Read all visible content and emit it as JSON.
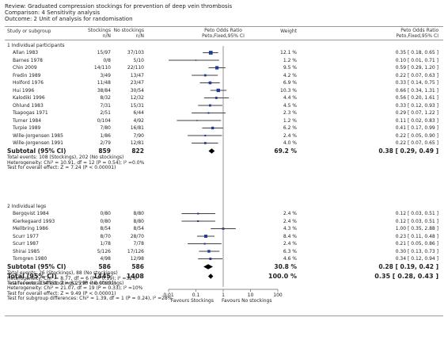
{
  "review": "Review:  Graduated compression stockings for prevention of deep vein thrombosis",
  "comparison": "Comparison:  4 Sensitivity analysis",
  "outcome": "Outcome:  2 Unit of analysis for randomisation",
  "columns": {
    "study": "Study or subgroup",
    "stockings1": "Stockings",
    "stockings2": "n/N",
    "nostock1": "No stockings",
    "nostock2": "n/N",
    "plot1": "Peto Odds Ratio",
    "plot2": "Peto,Fixed,95% CI",
    "weight": "Weight",
    "or1": "Peto Odds Ratio",
    "or2": "Peto,Fixed,95% CI"
  },
  "footer": {
    "left": "Favours Stockings",
    "right": "Favours No stockings",
    "ticks": [
      "0.01",
      "0.1",
      "1",
      "10",
      "100"
    ]
  },
  "chart_data": {
    "type": "forest",
    "scale": "log",
    "xlim": [
      0.01,
      100
    ],
    "groups": [
      {
        "title": "1 Individual participants",
        "studies": [
          {
            "name": "Allan 1983",
            "exp": "15/97",
            "ctrl": "37/103",
            "weight": "12.1 %",
            "ci": "0.35 [ 0.18, 0.65 ]",
            "or": 0.35,
            "lo": 0.18,
            "hi": 0.65,
            "w": 12.1
          },
          {
            "name": "Barnes 1978",
            "exp": "0/8",
            "ctrl": "5/10",
            "weight": "1.2 %",
            "ci": "0.10 [ 0.01, 0.71 ]",
            "or": 0.1,
            "lo": 0.01,
            "hi": 0.71,
            "w": 1.2
          },
          {
            "name": "Chin 2009",
            "exp": "14/110",
            "ctrl": "22/110",
            "weight": "9.5 %",
            "ci": "0.59 [ 0.29, 1.20 ]",
            "or": 0.59,
            "lo": 0.29,
            "hi": 1.2,
            "w": 9.5
          },
          {
            "name": "Fredin 1989",
            "exp": "3/49",
            "ctrl": "13/47",
            "weight": "4.2 %",
            "ci": "0.22 [ 0.07, 0.63 ]",
            "or": 0.22,
            "lo": 0.07,
            "hi": 0.63,
            "w": 4.2
          },
          {
            "name": "Holford 1976",
            "exp": "11/48",
            "ctrl": "23/47",
            "weight": "6.9 %",
            "ci": "0.33 [ 0.14, 0.75 ]",
            "or": 0.33,
            "lo": 0.14,
            "hi": 0.75,
            "w": 6.9
          },
          {
            "name": "Hui 1996",
            "exp": "38/84",
            "ctrl": "30/54",
            "weight": "10.3 %",
            "ci": "0.66 [ 0.34, 1.31 ]",
            "or": 0.66,
            "lo": 0.34,
            "hi": 1.31,
            "w": 10.3
          },
          {
            "name": "Kalodiki 1996",
            "exp": "8/32",
            "ctrl": "12/32",
            "weight": "4.4 %",
            "ci": "0.56 [ 0.20, 1.61 ]",
            "or": 0.56,
            "lo": 0.2,
            "hi": 1.61,
            "w": 4.4
          },
          {
            "name": "Ohlund 1983",
            "exp": "7/31",
            "ctrl": "15/31",
            "weight": "4.5 %",
            "ci": "0.33 [ 0.12, 0.93 ]",
            "or": 0.33,
            "lo": 0.12,
            "hi": 0.93,
            "w": 4.5
          },
          {
            "name": "Tsapogas 1971",
            "exp": "2/51",
            "ctrl": "6/44",
            "weight": "2.3 %",
            "ci": "0.29 [ 0.07, 1.22 ]",
            "or": 0.29,
            "lo": 0.07,
            "hi": 1.22,
            "w": 2.3
          },
          {
            "name": "Turner 1984",
            "exp": "0/104",
            "ctrl": "4/92",
            "weight": "1.2 %",
            "ci": "0.11 [ 0.02, 0.83 ]",
            "or": 0.11,
            "lo": 0.02,
            "hi": 0.83,
            "w": 1.2
          },
          {
            "name": "Turpie 1989",
            "exp": "7/80",
            "ctrl": "16/81",
            "weight": "6.2 %",
            "ci": "0.41 [ 0.17, 0.99 ]",
            "or": 0.41,
            "lo": 0.17,
            "hi": 0.99,
            "w": 6.2
          },
          {
            "name": "Wille-Jorgensen 1985",
            "exp": "1/86",
            "ctrl": "7/90",
            "weight": "2.4 %",
            "ci": "0.22 [ 0.05, 0.90 ]",
            "or": 0.22,
            "lo": 0.05,
            "hi": 0.9,
            "w": 2.4
          },
          {
            "name": "Wille-Jorgensen 1991",
            "exp": "2/79",
            "ctrl": "12/81",
            "weight": "4.0 %",
            "ci": "0.22 [ 0.07, 0.65 ]",
            "or": 0.22,
            "lo": 0.07,
            "hi": 0.65,
            "w": 4.0
          }
        ],
        "subtotal": {
          "label": "Subtotal (95% CI)",
          "exp": "859",
          "ctrl": "822",
          "weight": "69.2 %",
          "ci": "0.38 [ 0.29, 0.49 ]",
          "or": 0.38,
          "lo": 0.29,
          "hi": 0.49
        },
        "notes": [
          "Total events: 108 (Stockings), 202 (No stockings)",
          "Heterogeneity: Chi² = 10.91, df = 12 (P = 0.54); I² =0.0%",
          "Test for overall effect: Z = 7.24 (P < 0.00001)"
        ]
      },
      {
        "title": "2 Individual legs",
        "studies": [
          {
            "name": "Bergqvist 1984",
            "exp": "0/80",
            "ctrl": "8/80",
            "weight": "2.4 %",
            "ci": "0.12 [ 0.03, 0.51 ]",
            "or": 0.12,
            "lo": 0.03,
            "hi": 0.51,
            "w": 2.4
          },
          {
            "name": "Kierkegaard 1993",
            "exp": "0/80",
            "ctrl": "8/80",
            "weight": "2.4 %",
            "ci": "0.12 [ 0.03, 0.51 ]",
            "or": 0.12,
            "lo": 0.03,
            "hi": 0.51,
            "w": 2.4
          },
          {
            "name": "Mellbring 1986",
            "exp": "8/54",
            "ctrl": "8/54",
            "weight": "4.3 %",
            "ci": "1.00 [ 0.35, 2.88 ]",
            "or": 1.0,
            "lo": 0.35,
            "hi": 2.88,
            "w": 4.3
          },
          {
            "name": "Scurr 1977",
            "exp": "8/70",
            "ctrl": "28/70",
            "weight": "8.4 %",
            "ci": "0.23 [ 0.11, 0.48 ]",
            "or": 0.23,
            "lo": 0.11,
            "hi": 0.48,
            "w": 8.4
          },
          {
            "name": "Scurr 1987",
            "exp": "1/78",
            "ctrl": "7/78",
            "weight": "2.4 %",
            "ci": "0.21 [ 0.05, 0.86 ]",
            "or": 0.21,
            "lo": 0.05,
            "hi": 0.86,
            "w": 2.4
          },
          {
            "name": "Shirai 1985",
            "exp": "5/126",
            "ctrl": "17/126",
            "weight": "6.3 %",
            "ci": "0.30 [ 0.13, 0.73 ]",
            "or": 0.3,
            "lo": 0.13,
            "hi": 0.73,
            "w": 6.3
          },
          {
            "name": "Torngren 1980",
            "exp": "4/98",
            "ctrl": "12/98",
            "weight": "4.6 %",
            "ci": "0.34 [ 0.12, 0.94 ]",
            "or": 0.34,
            "lo": 0.12,
            "hi": 0.94,
            "w": 4.6
          }
        ],
        "subtotal": {
          "label": "Subtotal (95% CI)",
          "exp": "586",
          "ctrl": "586",
          "weight": "30.8 %",
          "ci": "0.28 [ 0.19, 0.42 ]",
          "or": 0.28,
          "lo": 0.19,
          "hi": 0.42
        },
        "notes": [
          "Total events: 26 (Stockings), 88 (No stockings)",
          "Heterogeneity: Chi² = 8.77, df = 6 (P = 0.19); I² =32%",
          "Test for overall effect: Z = 6.25 (P < 0.00001)"
        ]
      }
    ],
    "total": {
      "label": "Total (95% CI)",
      "exp": "1445",
      "ctrl": "1408",
      "weight": "100.0 %",
      "ci": "0.35 [ 0.28, 0.43 ]",
      "or": 0.35,
      "lo": 0.28,
      "hi": 0.43
    },
    "total_notes": [
      "Total events: 134 (Stockings), 290 (No stockings)",
      "Heterogeneity: Chi² = 21.07, df = 19 (P = 0.33); I² =10%",
      "Test for overall effect: Z = 9.49 (P < 0.00001)",
      "Test for subgroup differences: Chi² = 1.39, df = 1 (P = 0.24), I² =28%"
    ]
  }
}
